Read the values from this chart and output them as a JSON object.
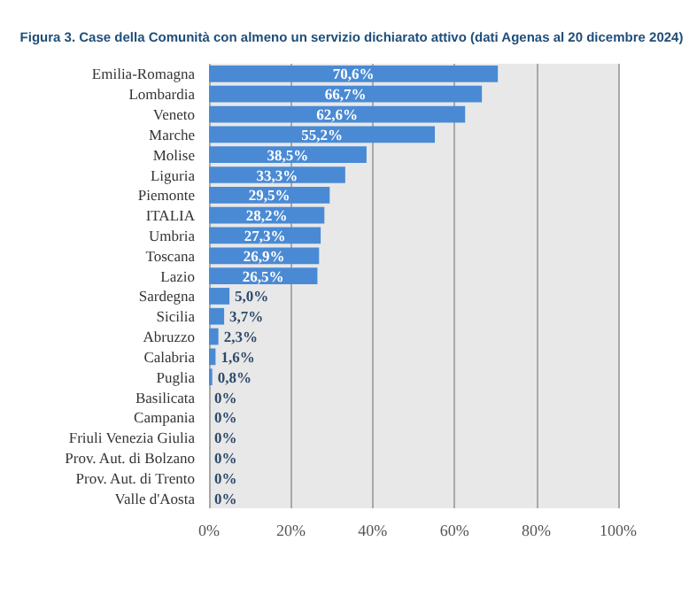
{
  "chart_data": {
    "type": "bar",
    "orientation": "horizontal",
    "title": "Figura 3. Case della Comunità con almeno un servizio dichiarato attivo (dati Agenas al 20 dicembre 2024)",
    "categories": [
      "Emilia-Romagna",
      "Lombardia",
      "Veneto",
      "Marche",
      "Molise",
      "Liguria",
      "Piemonte",
      "ITALIA",
      "Umbria",
      "Toscana",
      "Lazio",
      "Sardegna",
      "Sicilia",
      "Abruzzo",
      "Calabria",
      "Puglia",
      "Basilicata",
      "Campania",
      "Friuli Venezia Giulia",
      "Prov. Aut. di Bolzano",
      "Prov. Aut. di Trento",
      "Valle d'Aosta"
    ],
    "values": [
      70.6,
      66.7,
      62.6,
      55.2,
      38.5,
      33.3,
      29.5,
      28.2,
      27.3,
      26.9,
      26.5,
      5.0,
      3.7,
      2.3,
      1.6,
      0.8,
      0,
      0,
      0,
      0,
      0,
      0
    ],
    "value_labels": [
      "70,6%",
      "66,7%",
      "62,6%",
      "55,2%",
      "38,5%",
      "33,3%",
      "29,5%",
      "28,2%",
      "27,3%",
      "26,9%",
      "26,5%",
      "5,0%",
      "3,7%",
      "2,3%",
      "1,6%",
      "0,8%",
      "0%",
      "0%",
      "0%",
      "0%",
      "0%",
      "0%"
    ],
    "color": "#4a8ad4",
    "xlim": [
      0,
      100
    ],
    "xticks": [
      {
        "value": 0,
        "label": "0%"
      },
      {
        "value": 20,
        "label": "20%"
      },
      {
        "value": 40,
        "label": "40%"
      },
      {
        "value": 60,
        "label": "60%"
      },
      {
        "value": 80,
        "label": "80%"
      },
      {
        "value": 100,
        "label": "100%"
      }
    ],
    "grid": "x"
  }
}
